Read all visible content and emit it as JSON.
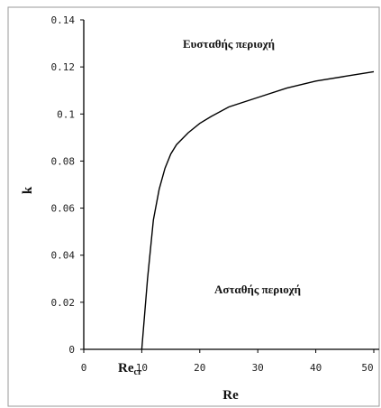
{
  "chart_data": {
    "type": "line",
    "xlabel": "Re",
    "ylabel": "k",
    "xlim": [
      0,
      50
    ],
    "ylim": [
      0,
      0.14
    ],
    "x_ticks": [
      "0",
      "10",
      "20",
      "30",
      "40",
      "50"
    ],
    "y_ticks": [
      "0",
      "0.02",
      "0.04",
      "0.06",
      "0.08",
      "0.1",
      "0.12",
      "0.14"
    ],
    "critical_label": "Re",
    "critical_label_sub": "cr",
    "annotations": {
      "upper": "Ευσταθής περιοχή",
      "lower": "Ασταθής περιοχή"
    },
    "series": [
      {
        "x": [
          10,
          11,
          12,
          13,
          14,
          15,
          16,
          18,
          20,
          22,
          25,
          30,
          35,
          40,
          45,
          50
        ],
        "y": [
          0,
          0.03,
          0.055,
          0.068,
          0.077,
          0.083,
          0.087,
          0.092,
          0.096,
          0.099,
          0.103,
          0.107,
          0.111,
          0.114,
          0.116,
          0.118
        ]
      }
    ],
    "grid": false,
    "color": "#000000"
  }
}
